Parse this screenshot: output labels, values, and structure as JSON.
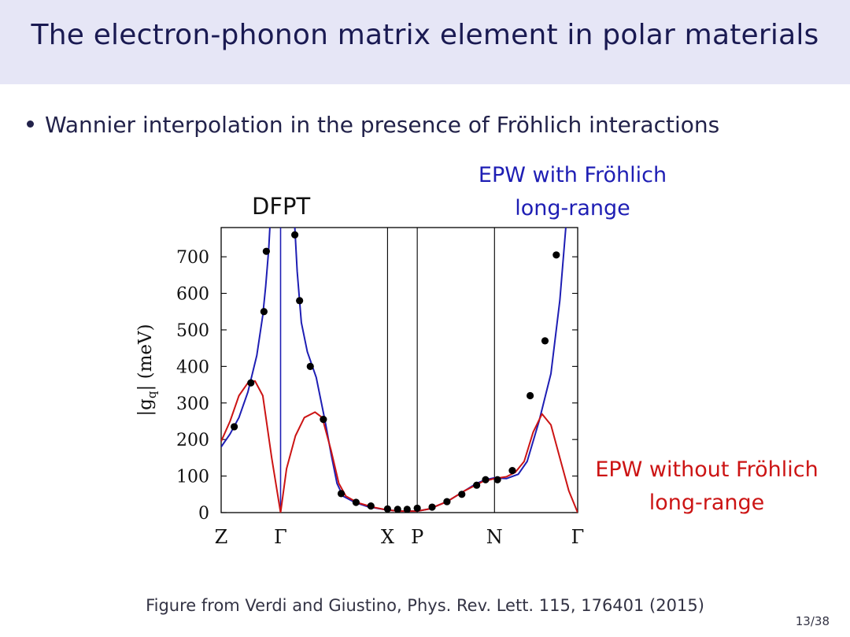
{
  "slide": {
    "title": "The electron-phonon matrix element in polar materials",
    "bullet": "Wannier interpolation in the presence of Fröhlich interactions",
    "caption": "Figure from Verdi and Giustino, Phys. Rev. Lett. 115, 176401 (2015)",
    "page": "13/38"
  },
  "annotations": {
    "dfpt": "DFPT",
    "epw_with_line1": "EPW with Fröhlich",
    "epw_with_line2": "long-range",
    "epw_without_line1": "EPW without Fröhlich",
    "epw_without_line2": "long-range"
  },
  "colors": {
    "title_bar": "#e6e6f6",
    "title_text": "#1a1a52",
    "blue_series": "#1e1eb4",
    "red_series": "#cc1414",
    "dots": "#000000"
  },
  "chart_data": {
    "type": "line",
    "title": "",
    "xlabel": "",
    "ylabel": "|g_q| (meV)",
    "ylabel_main": "|g",
    "ylabel_sub": "q",
    "ylabel_rest": "| (meV)",
    "xlim": [
      0,
      600
    ],
    "ylim": [
      0,
      780
    ],
    "yticks": [
      0,
      100,
      200,
      300,
      400,
      500,
      600,
      700
    ],
    "xticks": [
      {
        "pos": 0,
        "label": "Z"
      },
      {
        "pos": 100,
        "label": "Γ"
      },
      {
        "pos": 280,
        "label": "X"
      },
      {
        "pos": 330,
        "label": "P"
      },
      {
        "pos": 460,
        "label": "N"
      },
      {
        "pos": 600,
        "label": "Γ"
      }
    ],
    "vlines": [
      100,
      280,
      330,
      460
    ],
    "series": [
      {
        "name": "EPW with Fröhlich long-range",
        "color": "#1e1eb4",
        "segments": [
          [
            [
              0,
              180
            ],
            [
              15,
              215
            ],
            [
              30,
              260
            ],
            [
              45,
              330
            ],
            [
              60,
              430
            ],
            [
              70,
              540
            ],
            [
              75,
              620
            ],
            [
              80,
              720
            ],
            [
              82,
              780
            ]
          ],
          [
            [
              124,
              780
            ],
            [
              128,
              660
            ],
            [
              135,
              520
            ],
            [
              145,
              440
            ],
            [
              160,
              370
            ],
            [
              175,
              250
            ],
            [
              185,
              160
            ],
            [
              195,
              80
            ],
            [
              205,
              45
            ],
            [
              225,
              28
            ],
            [
              245,
              17
            ],
            [
              265,
              11
            ],
            [
              280,
              7
            ],
            [
              300,
              4
            ],
            [
              330,
              4
            ],
            [
              350,
              10
            ],
            [
              380,
              30
            ],
            [
              410,
              60
            ],
            [
              430,
              80
            ],
            [
              445,
              90
            ],
            [
              460,
              95
            ],
            [
              480,
              93
            ],
            [
              500,
              105
            ],
            [
              515,
              140
            ],
            [
              535,
              250
            ],
            [
              555,
              380
            ],
            [
              570,
              580
            ],
            [
              580,
              780
            ]
          ]
        ]
      },
      {
        "name": "EPW without Fröhlich long-range",
        "color": "#cc1414",
        "segments": [
          [
            [
              0,
              195
            ],
            [
              15,
              250
            ],
            [
              30,
              320
            ],
            [
              45,
              355
            ],
            [
              57,
              360
            ],
            [
              70,
              320
            ],
            [
              85,
              150
            ],
            [
              100,
              0
            ]
          ],
          [
            [
              100,
              0
            ],
            [
              110,
              120
            ],
            [
              125,
              210
            ],
            [
              140,
              260
            ],
            [
              158,
              275
            ],
            [
              170,
              260
            ],
            [
              185,
              170
            ],
            [
              198,
              80
            ],
            [
              210,
              45
            ],
            [
              230,
              27
            ],
            [
              255,
              15
            ],
            [
              280,
              7
            ],
            [
              300,
              4
            ],
            [
              330,
              4
            ],
            [
              350,
              10
            ],
            [
              380,
              30
            ],
            [
              410,
              60
            ],
            [
              440,
              85
            ],
            [
              460,
              93
            ],
            [
              480,
              98
            ],
            [
              495,
              110
            ],
            [
              510,
              140
            ],
            [
              525,
              220
            ],
            [
              540,
              270
            ],
            [
              555,
              240
            ],
            [
              570,
              150
            ],
            [
              585,
              60
            ],
            [
              600,
              0
            ]
          ]
        ]
      }
    ],
    "points": [
      [
        22,
        235
      ],
      [
        50,
        355
      ],
      [
        72,
        550
      ],
      [
        76,
        715
      ],
      [
        124,
        760
      ],
      [
        132,
        580
      ],
      [
        150,
        400
      ],
      [
        172,
        255
      ],
      [
        202,
        52
      ],
      [
        227,
        28
      ],
      [
        252,
        18
      ],
      [
        280,
        10
      ],
      [
        297,
        9
      ],
      [
        313,
        9
      ],
      [
        330,
        12
      ],
      [
        355,
        15
      ],
      [
        380,
        30
      ],
      [
        405,
        50
      ],
      [
        430,
        75
      ],
      [
        445,
        90
      ],
      [
        465,
        90
      ],
      [
        490,
        115
      ],
      [
        520,
        320
      ],
      [
        545,
        470
      ],
      [
        564,
        705
      ]
    ]
  }
}
